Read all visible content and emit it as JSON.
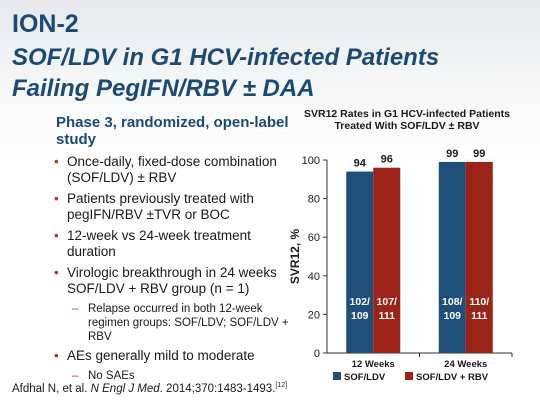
{
  "slide": {
    "title": "ION-2",
    "subtitle_line1": "SOF/LDV in G1 HCV-infected Patients",
    "subtitle_line2": "Failing PegIFN/RBV ± DAA",
    "lead": "Phase 3, randomized, open-label study",
    "bullets": [
      "Once-daily, fixed-dose combination (SOF/LDV) ± RBV",
      "Patients previously treated with pegIFN/RBV ±TVR or BOC",
      "12-week vs 24-week treatment duration",
      "Virologic breakthrough in 24 weeks SOF/LDV + RBV group (n = 1)"
    ],
    "sub_bullet_relapse": "Relapse occurred in both 12-week regimen groups: SOF/LDV; SOF/LDV + RBV",
    "bullet_aes": "AEs generally mild to moderate",
    "sub_bullet_saes": "No SAEs",
    "reference_authors": "Afdhal N, et al. ",
    "reference_journal": "N Engl J Med",
    "reference_rest": ". 2014;370:1483-1493.",
    "reference_num": "[12]"
  },
  "chart_data": {
    "type": "bar",
    "title": "SVR12 Rates in G1 HCV-infected Patients Treated With SOF/LDV ± RBV",
    "ylabel": "SVR12, %",
    "ylim": [
      0,
      100
    ],
    "yticks": [
      0,
      20,
      40,
      60,
      80,
      100
    ],
    "categories": [
      "12 Weeks",
      "24 Weeks"
    ],
    "series": [
      {
        "name": "SOF/LDV",
        "color": "#1f4e79",
        "values": [
          94,
          99
        ],
        "fractions": [
          [
            "102/",
            "109"
          ],
          [
            "108/",
            "109"
          ]
        ]
      },
      {
        "name": "SOF/LDV + RBV",
        "color": "#9b2317",
        "values": [
          96,
          99
        ],
        "fractions": [
          [
            "107/",
            "111"
          ],
          [
            "110/",
            "111"
          ]
        ]
      }
    ]
  }
}
